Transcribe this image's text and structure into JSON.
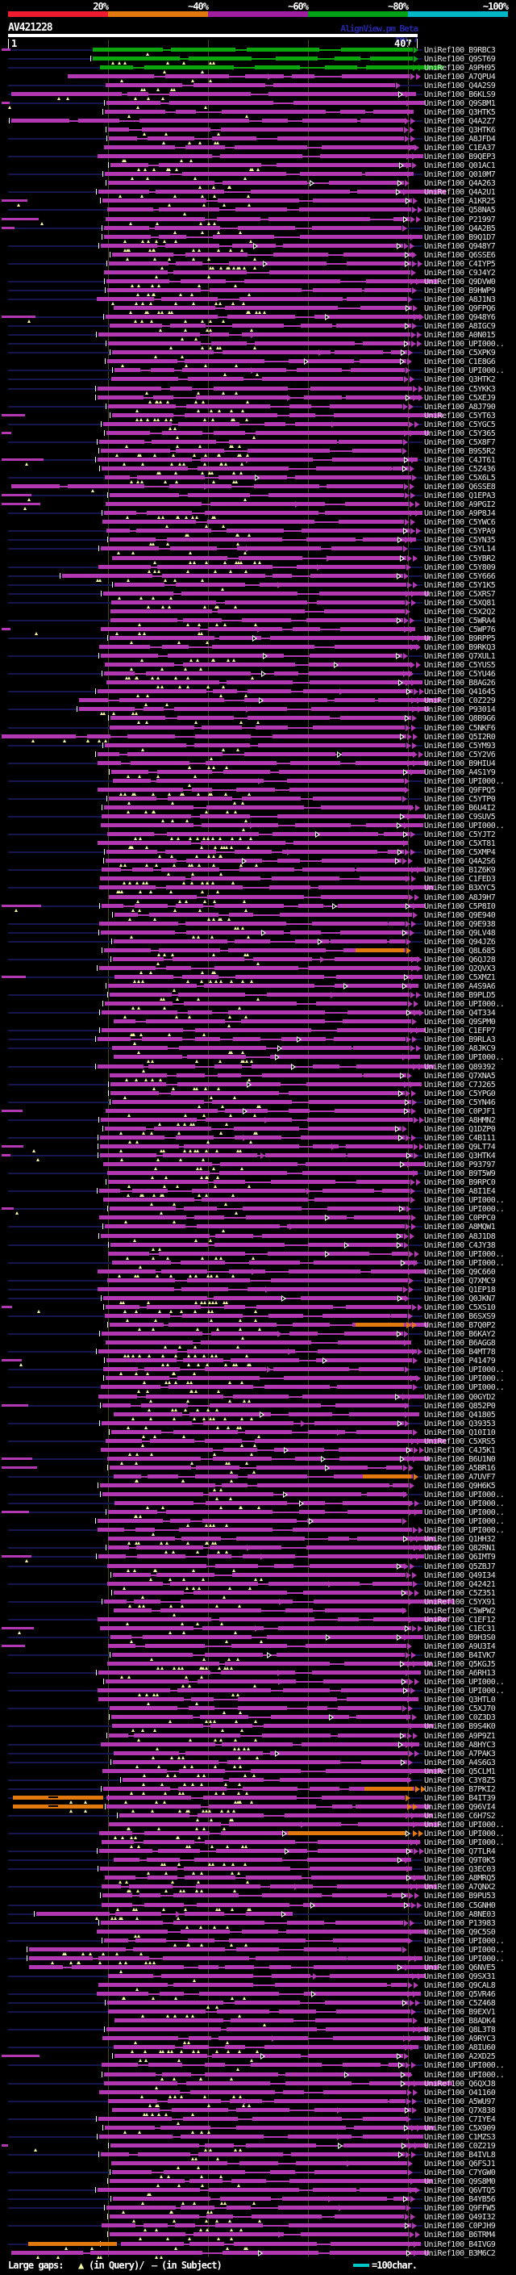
{
  "header": {
    "scale_labels": [
      "20%",
      "~40%",
      "~60%",
      "~80%",
      "~100%"
    ],
    "scale_colors": [
      "#ee1c2e",
      "#e2790f",
      "#a01ea0",
      "#00a017",
      "#00b6c8"
    ],
    "query_id": "AV421228",
    "watermark": "AlignView.pm Beta rel.7",
    "ruler_start": "1",
    "ruler_end": "407"
  },
  "legend": {
    "large_gaps_label": "Large gaps: ",
    "query_gap_symbol": "▲",
    "query_gap_text": "(in Query)/",
    "subject_gap_symbol": "– ",
    "subject_gap_text": "(in Subject)",
    "scale_note": "=100char."
  },
  "colors": {
    "bar_magenta": "#b238b2",
    "bar_green": "#0ba60b",
    "bar_orange": "#e2790f",
    "leader_navy": "#16164f",
    "gap_yellow": "#f7f7a6",
    "gridline_olive": "#45450f",
    "legend_cyan": "#00c8c8"
  },
  "rows": [
    {
      "label": "UniRef100_B9RBC3",
      "c": "g",
      "s": 115,
      "e": 512
    },
    {
      "label": "UniRef100_Q9ST69",
      "c": "g",
      "s": 115,
      "e": 512
    },
    {
      "label": "UniRef100_A9PH95",
      "c": "g",
      "s": 124,
      "e": 511
    },
    {
      "label": "UniRef100_A7QPU4",
      "s": 84,
      "e": 508
    },
    {
      "label": "UniRef100_Q4A2S9",
      "e": 490
    },
    {
      "label": "UniRef100_B6KLS9",
      "s": 14
    },
    {
      "label": "UniRef100_Q9SBM1"
    },
    {
      "label": "UniRef100_Q3HTK5"
    },
    {
      "label": "UniRef100_Q4A2Z7",
      "s": 14
    },
    {
      "label": "UniRef100_Q3HTK6"
    },
    {
      "label": "UniRef100_A8JFD4"
    },
    {
      "label": "UniRef100_C1EA37"
    },
    {
      "label": "UniRef100_B9QEP3"
    },
    {
      "label": "UniRef100_Q01AC1"
    },
    {
      "label": "UniRef100_Q010M7"
    },
    {
      "label": "UniRef100_Q4A263"
    },
    {
      "label": "UniRef100_Q4A2U1"
    },
    {
      "label": "UniRef100_A1KR25"
    },
    {
      "label": "UniRef100_Q58NA5"
    },
    {
      "label": "UniRef100_P21997"
    },
    {
      "label": "UniRef100_Q4A2B5"
    },
    {
      "label": "UniRef100_B9Q1D7"
    },
    {
      "label": "UniRef100_Q948Y7"
    },
    {
      "label": "UniRef100_Q6SSE6"
    },
    {
      "label": "UniRef100_C4IYP5"
    },
    {
      "label": "UniRef100_C9J4Y2"
    },
    {
      "label": "UniRef100_Q9DVW0"
    },
    {
      "label": "UniRef100_B9HWP9"
    },
    {
      "label": "UniRef100_A8J1N3"
    },
    {
      "label": "UniRef100_Q9FPQ6"
    },
    {
      "label": "UniRef100_Q948Y6"
    },
    {
      "label": "UniRef100_A8IGC9"
    },
    {
      "label": "UniRef100_A0N015"
    },
    {
      "label": "UniRef100_UPI000.."
    },
    {
      "label": "UniRef100_C5XPK9"
    },
    {
      "label": "UniRef100_C1E8G6"
    },
    {
      "label": "UniRef100_UPI000.."
    },
    {
      "label": "UniRef100_Q3HTK2"
    },
    {
      "label": "UniRef100_C5YKK3"
    },
    {
      "label": "UniRef100_C5XEJ9"
    },
    {
      "label": "UniRef100_A8J790"
    },
    {
      "label": "UniRef100_C5YT63"
    },
    {
      "label": "UniRef100_C5YGC5"
    },
    {
      "label": "UniRef100_C5Y365"
    },
    {
      "label": "UniRef100_C5X8F7"
    },
    {
      "label": "UniRef100_B9S5R2"
    },
    {
      "label": "UniRef100_C4JT61"
    },
    {
      "label": "UniRef100_C5Z436"
    },
    {
      "label": "UniRef100_C5X6L5"
    },
    {
      "label": "UniRef100_Q6SSE8",
      "s": 14
    },
    {
      "label": "UniRef100_Q1EPA3"
    },
    {
      "label": "UniRef100_A9PGI2"
    },
    {
      "label": "UniRef100_A9P8J4"
    },
    {
      "label": "UniRef100_C5YWC6"
    },
    {
      "label": "UniRef100_C5YPA9"
    },
    {
      "label": "UniRef100_C5YN35"
    },
    {
      "label": "UniRef100_C5YL14"
    },
    {
      "label": "UniRef100_C5YBR2"
    },
    {
      "label": "UniRef100_C5Y809"
    },
    {
      "label": "UniRef100_C5Y666",
      "s": 77
    },
    {
      "label": "UniRef100_C5Y1K5"
    },
    {
      "label": "UniRef100_C5XRS7"
    },
    {
      "label": "UniRef100_C5XQ81"
    },
    {
      "label": "UniRef100_C5X2Q2"
    },
    {
      "label": "UniRef100_C5WRA4"
    },
    {
      "label": "UniRef100_C5WP76"
    },
    {
      "label": "UniRef100_B9RPP5"
    },
    {
      "label": "UniRef100_B9RKQ3"
    },
    {
      "label": "UniRef100_Q7XUL1"
    },
    {
      "label": "UniRef100_C5YUS5"
    },
    {
      "label": "UniRef100_C5YU46"
    },
    {
      "label": "UniRef100_B8AG26"
    },
    {
      "label": "UniRef100_Q41645"
    },
    {
      "label": "UniRef100_C0Z229",
      "s": 98
    },
    {
      "label": "UniRef100_P93014",
      "s": 98
    },
    {
      "label": "UniRef100_Q8B9G6"
    },
    {
      "label": "UniRef100_C5NKF6"
    },
    {
      "label": "UniRef100_Q5I2R0",
      "s": 2
    },
    {
      "label": "UniRef100_C5YM93"
    },
    {
      "label": "UniRef100_C5Y2V6"
    },
    {
      "label": "UniRef100_B9HIU4"
    },
    {
      "label": "UniRef100_A4S1Y9"
    },
    {
      "label": "UniRef100_UPI000.."
    },
    {
      "label": "UniRef100_Q9FPQ5"
    },
    {
      "label": "UniRef100_C5YTP0"
    },
    {
      "label": "UniRef100_B6U4I2"
    },
    {
      "label": "UniRef100_C9SUV5"
    },
    {
      "label": "UniRef100_UPI000.."
    },
    {
      "label": "UniRef100_C5YJT2"
    },
    {
      "label": "UniRef100_C5XT81"
    },
    {
      "label": "UniRef100_C5XMP4"
    },
    {
      "label": "UniRef100_Q4A2S6"
    },
    {
      "label": "UniRef100_B1Z6K9"
    },
    {
      "label": "UniRef100_C1FED3"
    },
    {
      "label": "UniRef100_B3XYC5"
    },
    {
      "label": "UniRef100_A8J9H7"
    },
    {
      "label": "UniRef100_C5P8I0"
    },
    {
      "label": "UniRef100_Q9E940"
    },
    {
      "label": "UniRef100_Q9E938"
    },
    {
      "label": "UniRef100_Q9LV48"
    },
    {
      "label": "UniRef100_Q94JZ6"
    },
    {
      "label": "UniRef100_Q8L685",
      "c": "oe"
    },
    {
      "label": "UniRef100_Q6QJ28"
    },
    {
      "label": "UniRef100_Q2QVX3"
    },
    {
      "label": "UniRef100_C5XMZ1"
    },
    {
      "label": "UniRef100_A4S9A6"
    },
    {
      "label": "UniRef100_B9PLD5"
    },
    {
      "label": "UniRef100_UPI000.."
    },
    {
      "label": "UniRef100_Q4T334"
    },
    {
      "label": "UniRef100_Q9SPM0"
    },
    {
      "label": "UniRef100_C1EFP7"
    },
    {
      "label": "UniRef100_B9RLA3"
    },
    {
      "label": "UniRef100_A8JKC9"
    },
    {
      "label": "UniRef100_UPI000.."
    },
    {
      "label": "UniRef100_Q89392"
    },
    {
      "label": "UniRef100_Q7XNA5"
    },
    {
      "label": "UniRef100_C7J265"
    },
    {
      "label": "UniRef100_C5YPG0"
    },
    {
      "label": "UniRef100_C5YN46"
    },
    {
      "label": "UniRef100_C0PJF1"
    },
    {
      "label": "UniRef100_A8HMN2"
    },
    {
      "label": "UniRef100_Q1DZP0"
    },
    {
      "label": "UniRef100_C4B111"
    },
    {
      "label": "UniRef100_Q9LT74"
    },
    {
      "label": "UniRef100_Q3HTK4"
    },
    {
      "label": "UniRef100_P93797"
    },
    {
      "label": "UniRef100_B9T5W9"
    },
    {
      "label": "UniRef100_B9RPC0"
    },
    {
      "label": "UniRef100_A8I1E4"
    },
    {
      "label": "UniRef100_UPI000.."
    },
    {
      "label": "UniRef100_UPI000.."
    },
    {
      "label": "UniRef100_C0PPC0"
    },
    {
      "label": "UniRef100_A8MQW1"
    },
    {
      "label": "UniRef100_A8J1D8"
    },
    {
      "label": "UniRef100_C4JY38"
    },
    {
      "label": "UniRef100_UPI000.."
    },
    {
      "label": "UniRef100_UPI000.."
    },
    {
      "label": "UniRef100_Q9C660"
    },
    {
      "label": "UniRef100_Q7XMC9"
    },
    {
      "label": "UniRef100_Q1EP18"
    },
    {
      "label": "UniRef100_Q0JKN7"
    },
    {
      "label": "UniRef100_C5XS10"
    },
    {
      "label": "UniRef100_B6SXS9"
    },
    {
      "label": "UniRef100_B7Q0P2",
      "c": "oe"
    },
    {
      "label": "UniRef100_B6KAY2"
    },
    {
      "label": "UniRef100_B6AGG8"
    },
    {
      "label": "UniRef100_B4MT78"
    },
    {
      "label": "UniRef100_P41479"
    },
    {
      "label": "UniRef100_UPI000.."
    },
    {
      "label": "UniRef100_UPI000.."
    },
    {
      "label": "UniRef100_UPI000.."
    },
    {
      "label": "UniRef100_Q0GYD2"
    },
    {
      "label": "UniRef100_Q852P0"
    },
    {
      "label": "UniRef100_Q41805"
    },
    {
      "label": "UniRef100_Q39353"
    },
    {
      "label": "UniRef100_Q10I10"
    },
    {
      "label": "UniRef100_C5XRS5"
    },
    {
      "label": "UniRef100_C4J5K1"
    },
    {
      "label": "UniRef100_B6U1N0"
    },
    {
      "label": "UniRef100_A5BR16"
    },
    {
      "label": "UniRef100_A7UVF7",
      "c": "oe"
    },
    {
      "label": "UniRef100_Q9H6K5"
    },
    {
      "label": "UniRef100_UPI000.."
    },
    {
      "label": "UniRef100_UPI000.."
    },
    {
      "label": "UniRef100_UPI000.."
    },
    {
      "label": "UniRef100_UPI000.."
    },
    {
      "label": "UniRef100_UPI000.."
    },
    {
      "label": "UniRef100_Q1HH32"
    },
    {
      "label": "UniRef100_Q82RN1"
    },
    {
      "label": "UniRef100_Q6IMT9"
    },
    {
      "label": "UniRef100_Q5ZBJ7"
    },
    {
      "label": "UniRef100_Q49I34"
    },
    {
      "label": "UniRef100_Q42421"
    },
    {
      "label": "UniRef100_C5Z351"
    },
    {
      "label": "UniRef100_C5YX91"
    },
    {
      "label": "UniRef100_C5WPW2"
    },
    {
      "label": "UniRef100_C1EF12"
    },
    {
      "label": "UniRef100_C1EC31"
    },
    {
      "label": "UniRef100_B9H3S0"
    },
    {
      "label": "UniRef100_A9U3I4"
    },
    {
      "label": "UniRef100_B4IVK7"
    },
    {
      "label": "UniRef100_Q5KGJ5"
    },
    {
      "label": "UniRef100_A6RH13"
    },
    {
      "label": "UniRef100_UPI000.."
    },
    {
      "label": "UniRef100_UPI000.."
    },
    {
      "label": "UniRef100_Q3HTL0"
    },
    {
      "label": "UniRef100_C5XJ70"
    },
    {
      "label": "UniRef100_C0Z3D3"
    },
    {
      "label": "UniRef100_B9S4K0"
    },
    {
      "label": "UniRef100_A9P9Z1"
    },
    {
      "label": "UniRef100_A8HYC3"
    },
    {
      "label": "UniRef100_A7PAK3"
    },
    {
      "label": "UniRef100_A4S6G3"
    },
    {
      "label": "UniRef100_Q5CLM1"
    },
    {
      "label": "UniRef100_C3Y8Z5",
      "s": 152
    },
    {
      "label": "UniRef100_B7PKI2",
      "c": "oe",
      "s": 128,
      "e": 514
    },
    {
      "label": "UniRef100_B4IT39",
      "c": "ol"
    },
    {
      "label": "UniRef100_Q96VI4",
      "c": "ol"
    },
    {
      "label": "UniRef100_C6H7S2",
      "s": 148
    },
    {
      "label": "UniRef100_UPI000.."
    },
    {
      "label": "UniRef100_UPI000..",
      "c": "or"
    },
    {
      "label": "UniRef100_UPI000.."
    },
    {
      "label": "UniRef100_Q7TLR4"
    },
    {
      "label": "UniRef100_Q9T0K5"
    },
    {
      "label": "UniRef100_Q3EC03"
    },
    {
      "label": "UniRef100_A8MRQ5"
    },
    {
      "label": "UniRef100_A7QNX2"
    },
    {
      "label": "UniRef100_B9PU53"
    },
    {
      "label": "UniRef100_C5GNH0"
    },
    {
      "label": "UniRef100_A8NE03",
      "s": 45,
      "e": 348,
      "h": 1
    },
    {
      "label": "UniRef100_P13983",
      "s": 125
    },
    {
      "label": "UniRef100_Q9C5S0"
    },
    {
      "label": "UniRef100_UPI000.."
    },
    {
      "label": "UniRef100_UPI000..",
      "s": 36
    },
    {
      "label": "UniRef100_UPI000..",
      "s": 36
    },
    {
      "label": "UniRef100_Q6NVE5",
      "s": 36
    },
    {
      "label": "UniRef100_Q9SX31"
    },
    {
      "label": "UniRef100_Q9CAL8"
    },
    {
      "label": "UniRef100_Q5VR46"
    },
    {
      "label": "UniRef100_C5Z468"
    },
    {
      "label": "UniRef100_B9EXV1"
    },
    {
      "label": "UniRef100_B8ADK4"
    },
    {
      "label": "UniRef100_Q8L3T8"
    },
    {
      "label": "UniRef100_A9RYC3"
    },
    {
      "label": "UniRef100_A8IU60"
    },
    {
      "label": "UniRef100_A2XD25"
    },
    {
      "label": "UniRef100_UPI000.."
    },
    {
      "label": "UniRef100_UPI000.."
    },
    {
      "label": "UniRef100_Q6QXJ8"
    },
    {
      "label": "UniRef100_O41160"
    },
    {
      "label": "UniRef100_A5WU97"
    },
    {
      "label": "UniRef100_Q7X838"
    },
    {
      "label": "UniRef100_C7IYE4"
    },
    {
      "label": "UniRef100_C5X909"
    },
    {
      "label": "UniRef100_C1MZS3"
    },
    {
      "label": "UniRef100_C0Z219"
    },
    {
      "label": "UniRef100_B4IVL8"
    },
    {
      "label": "UniRef100_Q6FSJ1"
    },
    {
      "label": "UniRef100_C7YGW0"
    },
    {
      "label": "UniRef100_Q9S8M0"
    },
    {
      "label": "UniRef100_Q6VTQ5"
    },
    {
      "label": "UniRef100_B4YB56"
    },
    {
      "label": "UniRef100_Q9FFW5"
    },
    {
      "label": "UniRef100_Q49I32"
    },
    {
      "label": "UniRef100_C0PJH9"
    },
    {
      "label": "UniRef100_B6TRM4"
    },
    {
      "label": "UniRef100_B4IVG9",
      "c": "oh"
    },
    {
      "label": "UniRef100_B3M6C2",
      "s": 14,
      "e": 512
    }
  ]
}
